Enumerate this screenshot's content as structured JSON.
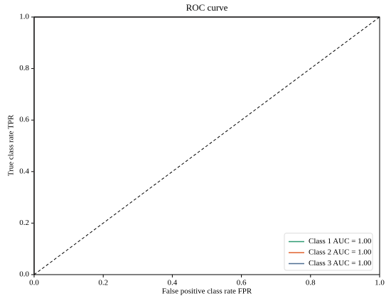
{
  "chart_data": {
    "type": "line",
    "title": "ROC curve",
    "x_label": "False positive class rate FPR",
    "y_label": "True class rate TPR",
    "x": [
      0,
      0,
      1
    ],
    "series": [
      {
        "name": "Class 1 AUC = 1.00",
        "color": "#2e9b72",
        "values": [
          0,
          1,
          1
        ]
      },
      {
        "name": "Class 2 AUC = 1.00",
        "color": "#e0622e",
        "values": [
          0,
          1,
          1
        ]
      },
      {
        "name": "Class 3 AUC = 1.00",
        "color": "#4f6f92",
        "values": [
          0,
          1,
          1
        ]
      }
    ],
    "diagonal": {
      "x": [
        0,
        1
      ],
      "values": [
        0,
        1
      ],
      "color": "#000000",
      "dash": "4,3"
    },
    "xlim": [
      0,
      1
    ],
    "ylim": [
      0,
      1
    ],
    "xticks": [
      {
        "value": 0,
        "label": "0.0"
      },
      0.2,
      0.4,
      0.6,
      0.8,
      {
        "value": 1,
        "label": "1.0"
      }
    ],
    "yticks": [
      {
        "value": 0,
        "label": "0.0"
      },
      0.2,
      0.4,
      0.6,
      0.8,
      {
        "value": 1,
        "label": "1.0"
      }
    ],
    "legend": "lower right",
    "grid": false
  }
}
